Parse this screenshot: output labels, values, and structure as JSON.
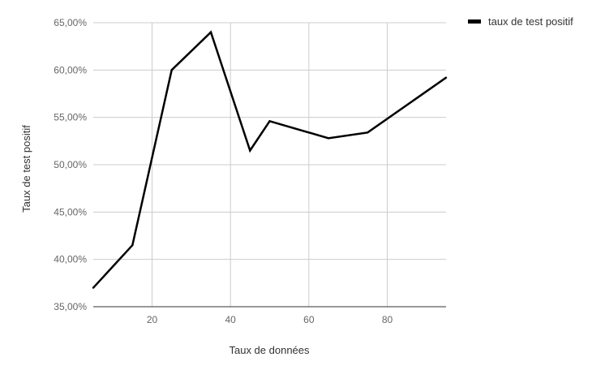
{
  "chart_data": {
    "type": "line",
    "title": "",
    "xlabel": "Taux de données",
    "ylabel": "Taux de test positif",
    "xlim": [
      5,
      95
    ],
    "ylim": [
      35,
      65
    ],
    "x_ticks": [
      20,
      40,
      60,
      80
    ],
    "x_tick_labels": [
      "20",
      "40",
      "60",
      "80"
    ],
    "y_ticks": [
      35,
      40,
      45,
      50,
      55,
      60,
      65
    ],
    "y_tick_labels": [
      "35,00%",
      "40,00%",
      "45,00%",
      "50,00%",
      "55,00%",
      "60,00%",
      "65,00%"
    ],
    "grid": true,
    "legend_position": "top-right",
    "series": [
      {
        "name": "taux de test positif",
        "color": "#000000",
        "x": [
          5,
          15,
          25,
          35,
          45,
          50,
          65,
          75,
          95
        ],
        "y": [
          37.0,
          41.5,
          60.0,
          64.0,
          51.5,
          54.6,
          52.8,
          53.4,
          59.2
        ]
      }
    ]
  }
}
